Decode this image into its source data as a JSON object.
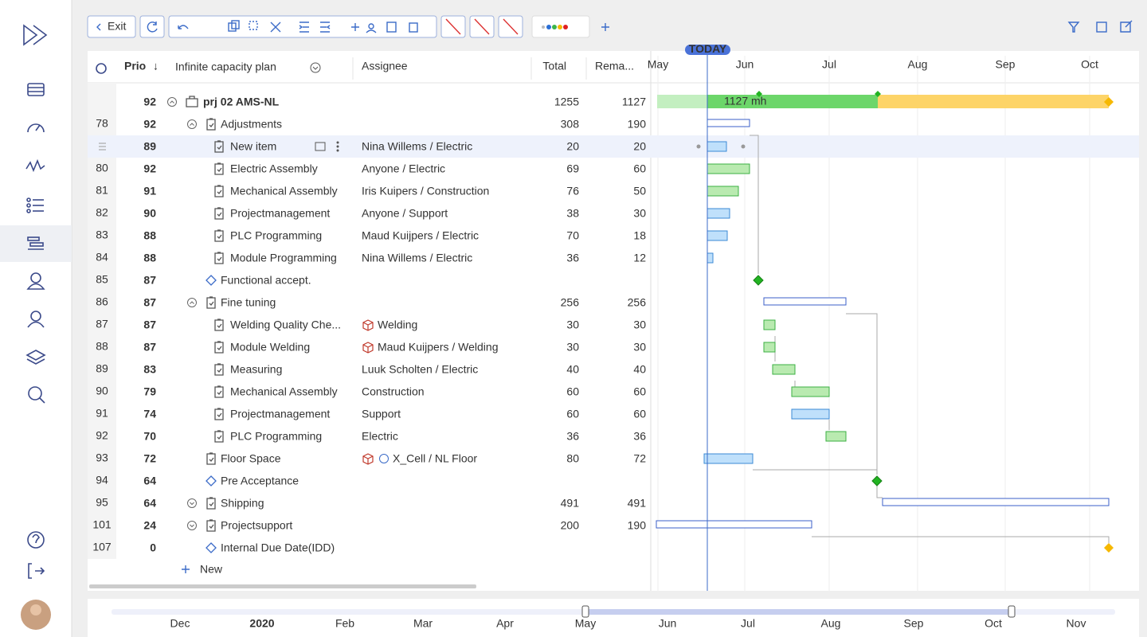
{
  "toolbar": {
    "exit": "Exit"
  },
  "grid": {
    "columns": {
      "prio": "Prio",
      "name": "Infinite capacity plan",
      "assignee": "Assignee",
      "total": "Total",
      "remaining": "Rema..."
    },
    "rows": [
      {
        "prio": 92,
        "name": "prj 02 AMS-NL",
        "total": 1255,
        "remaining": 1127
      },
      {
        "id": 78,
        "prio": 92,
        "name": "Adjustments",
        "total": 308,
        "remaining": 190
      },
      {
        "prio": 89,
        "name": "New item",
        "assignee": "Nina Willems / Electric",
        "total": 20,
        "remaining": 20
      },
      {
        "id": 80,
        "prio": 92,
        "name": "Electric Assembly",
        "assignee": "Anyone / Electric",
        "total": 69,
        "remaining": 60
      },
      {
        "id": 81,
        "prio": 91,
        "name": "Mechanical Assembly",
        "assignee": "Iris Kuipers / Construction",
        "total": 76,
        "remaining": 50
      },
      {
        "id": 82,
        "prio": 90,
        "name": "Projectmanagement",
        "assignee": "Anyone / Support",
        "total": 38,
        "remaining": 30
      },
      {
        "id": 83,
        "prio": 88,
        "name": "PLC Programming",
        "assignee": "Maud Kuijpers / Electric",
        "total": 70,
        "remaining": 18
      },
      {
        "id": 84,
        "prio": 88,
        "name": "Module Programming",
        "assignee": "Nina Willems / Electric",
        "total": 36,
        "remaining": 12
      },
      {
        "id": 85,
        "prio": 87,
        "name": "Functional accept."
      },
      {
        "id": 86,
        "prio": 87,
        "name": "Fine tuning",
        "total": 256,
        "remaining": 256
      },
      {
        "id": 87,
        "prio": 87,
        "name": "Welding Quality Che...",
        "assignee": "Welding",
        "total": 30,
        "remaining": 30
      },
      {
        "id": 88,
        "prio": 87,
        "name": "Module Welding",
        "assignee": "Maud Kuijpers / Welding",
        "total": 30,
        "remaining": 30
      },
      {
        "id": 89,
        "prio": 83,
        "name": "Measuring",
        "assignee": "Luuk Scholten / Electric",
        "total": 40,
        "remaining": 40
      },
      {
        "id": 90,
        "prio": 79,
        "name": "Mechanical Assembly",
        "assignee": "Construction",
        "total": 60,
        "remaining": 60
      },
      {
        "id": 91,
        "prio": 74,
        "name": "Projectmanagement",
        "assignee": "Support",
        "total": 60,
        "remaining": 60
      },
      {
        "id": 92,
        "prio": 70,
        "name": "PLC Programming",
        "assignee": "Electric",
        "total": 36,
        "remaining": 36
      },
      {
        "id": 93,
        "prio": 72,
        "name": "Floor Space",
        "assignee": "X_Cell / NL Floor",
        "total": 80,
        "remaining": 72
      },
      {
        "id": 94,
        "prio": 64,
        "name": "Pre Acceptance"
      },
      {
        "id": 95,
        "prio": 64,
        "name": "Shipping",
        "total": 491,
        "remaining": 491
      },
      {
        "id": 101,
        "prio": 24,
        "name": "Projectsupport",
        "total": 200,
        "remaining": 190
      },
      {
        "id": 107,
        "prio": 0,
        "name": "Internal Due Date(IDD)"
      }
    ],
    "new": "New"
  },
  "gantt": {
    "today": "TODAY",
    "months": [
      "May",
      "Jun",
      "Jul",
      "Aug",
      "Sep",
      "Oct"
    ],
    "summary_label": "1127 mh"
  },
  "timeline": {
    "labels": [
      "Dec",
      "2020",
      "Feb",
      "Mar",
      "Apr",
      "May",
      "Jun",
      "Jul",
      "Aug",
      "Sep",
      "Oct",
      "Nov"
    ]
  }
}
